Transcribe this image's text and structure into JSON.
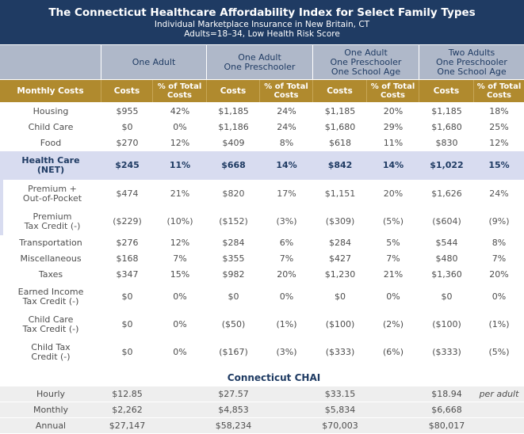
{
  "title": {
    "main": "The Connecticut Healthcare Affordability Index for Select Family Types",
    "line2": "Individual Marketplace Insurance in New Britain, CT",
    "line3": "Adults=18–34, Low Health Risk Score"
  },
  "family_types": [
    {
      "lines": [
        "One Adult"
      ]
    },
    {
      "lines": [
        "One Adult",
        "One Preschooler"
      ]
    },
    {
      "lines": [
        "One Adult",
        "One Preschooler",
        "One School Age"
      ]
    },
    {
      "lines": [
        "Two Adults",
        "One Preschooler",
        "One School Age"
      ]
    }
  ],
  "subheader": {
    "label": "Monthly Costs",
    "costs": "Costs",
    "pct_line1": "% of Total",
    "pct_line2": "Costs"
  },
  "rows": [
    {
      "label": [
        "Housing"
      ],
      "vals": [
        "$955",
        "42%",
        "$1,185",
        "24%",
        "$1,185",
        "20%",
        "$1,185",
        "18%"
      ],
      "style": "plain"
    },
    {
      "label": [
        "Child Care"
      ],
      "vals": [
        "$0",
        "0%",
        "$1,186",
        "24%",
        "$1,680",
        "29%",
        "$1,680",
        "25%"
      ],
      "style": "plain"
    },
    {
      "label": [
        "Food"
      ],
      "vals": [
        "$270",
        "12%",
        "$409",
        "8%",
        "$618",
        "11%",
        "$830",
        "12%"
      ],
      "style": "plain"
    },
    {
      "label": [
        "Health Care",
        "(NET)"
      ],
      "vals": [
        "$245",
        "11%",
        "$668",
        "14%",
        "$842",
        "14%",
        "$1,022",
        "15%"
      ],
      "style": "hc"
    },
    {
      "label": [
        "Premium +",
        "Out-of-Pocket"
      ],
      "vals": [
        "$474",
        "21%",
        "$820",
        "17%",
        "$1,151",
        "20%",
        "$1,626",
        "24%"
      ],
      "style": "indent"
    },
    {
      "label": [
        "Premium",
        "Tax Credit (-)"
      ],
      "vals": [
        "($229)",
        "(10%)",
        "($152)",
        "(3%)",
        "($309)",
        "(5%)",
        "($604)",
        "(9%)"
      ],
      "style": "indent"
    },
    {
      "label": [
        "Transportation"
      ],
      "vals": [
        "$276",
        "12%",
        "$284",
        "6%",
        "$284",
        "5%",
        "$544",
        "8%"
      ],
      "style": "plain"
    },
    {
      "label": [
        "Miscellaneous"
      ],
      "vals": [
        "$168",
        "7%",
        "$355",
        "7%",
        "$427",
        "7%",
        "$480",
        "7%"
      ],
      "style": "plain"
    },
    {
      "label": [
        "Taxes"
      ],
      "vals": [
        "$347",
        "15%",
        "$982",
        "20%",
        "$1,230",
        "21%",
        "$1,360",
        "20%"
      ],
      "style": "plain"
    },
    {
      "label": [
        "Earned Income",
        "Tax Credit (-)"
      ],
      "vals": [
        "$0",
        "0%",
        "$0",
        "0%",
        "$0",
        "0%",
        "$0",
        "0%"
      ],
      "style": "plain"
    },
    {
      "label": [
        "Child Care",
        "Tax Credit (-)"
      ],
      "vals": [
        "$0",
        "0%",
        "($50)",
        "(1%)",
        "($100)",
        "(2%)",
        "($100)",
        "(1%)"
      ],
      "style": "plain"
    },
    {
      "label": [
        "Child Tax",
        "Credit (-)"
      ],
      "vals": [
        "$0",
        "0%",
        "($167)",
        "(3%)",
        "($333)",
        "(6%)",
        "($333)",
        "(5%)"
      ],
      "style": "plain"
    }
  ],
  "chai": {
    "title": "Connecticut CHAI",
    "rows": [
      {
        "label": "Hourly",
        "vals": [
          "$12.85",
          "$27.57",
          "$33.15",
          "$18.94"
        ],
        "note": "per adult"
      },
      {
        "label": "Monthly",
        "vals": [
          "$2,262",
          "$4,853",
          "$5,834",
          "$6,668"
        ],
        "note": ""
      },
      {
        "label": "Annual",
        "vals": [
          "$27,147",
          "$58,234",
          "$70,003",
          "$80,017"
        ],
        "note": ""
      }
    ]
  },
  "colors": {
    "title_bg": "#1f3b63",
    "family_header_bg": "#afb8c9",
    "subheader_bg": "#b08a2e",
    "health_care_bg": "#d8dcf0",
    "chai_bg": "#eeeeee"
  }
}
